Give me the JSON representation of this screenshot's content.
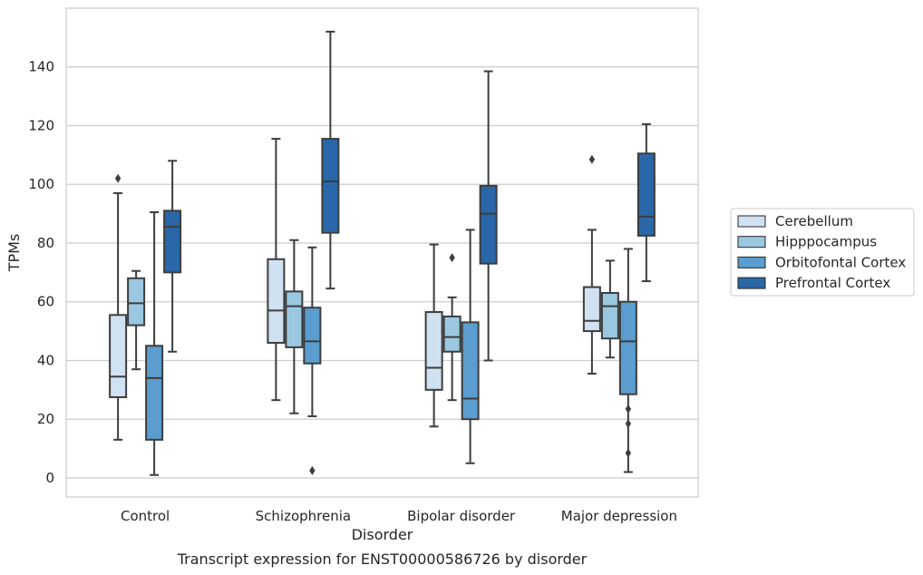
{
  "chart_data": {
    "type": "box",
    "caption": "Transcript expression for ENST00000586726 by disorder",
    "xlabel": "Disorder",
    "ylabel": "TPMs",
    "ylim": [
      -6.5,
      160
    ],
    "yticks": [
      0,
      20,
      40,
      60,
      80,
      100,
      120,
      140
    ],
    "grid": "horizontal",
    "legend_position": "right",
    "categories": [
      "Control",
      "Schizophrenia",
      "Bipolar disorder",
      "Major depression"
    ],
    "series": [
      {
        "name": "Cerebellum",
        "color": "#d0e1f2",
        "boxes": [
          {
            "whisker_low": 13,
            "q1": 27.5,
            "median": 34.5,
            "q3": 55.5,
            "whisker_high": 97,
            "outliers": [
              102
            ]
          },
          {
            "whisker_low": 26.5,
            "q1": 46,
            "median": 57,
            "q3": 74.5,
            "whisker_high": 115.5,
            "outliers": []
          },
          {
            "whisker_low": 17.5,
            "q1": 30,
            "median": 37.5,
            "q3": 56.5,
            "whisker_high": 79.5,
            "outliers": []
          },
          {
            "whisker_low": 35.5,
            "q1": 50,
            "median": 53.5,
            "q3": 65,
            "whisker_high": 84.5,
            "outliers": [
              108.5
            ]
          }
        ]
      },
      {
        "name": "Hipppocampus",
        "color": "#9ac8e0",
        "boxes": [
          {
            "whisker_low": 37,
            "q1": 52,
            "median": 59.5,
            "q3": 68,
            "whisker_high": 70.5,
            "outliers": []
          },
          {
            "whisker_low": 22,
            "q1": 44.5,
            "median": 58.5,
            "q3": 63.5,
            "whisker_high": 81,
            "outliers": []
          },
          {
            "whisker_low": 26.5,
            "q1": 43,
            "median": 48,
            "q3": 55,
            "whisker_high": 61.5,
            "outliers": [
              75
            ]
          },
          {
            "whisker_low": 41,
            "q1": 47.5,
            "median": 58.5,
            "q3": 63,
            "whisker_high": 74,
            "outliers": []
          }
        ]
      },
      {
        "name": "Orbitofontal Cortex",
        "color": "#5a9dce",
        "boxes": [
          {
            "whisker_low": 1,
            "q1": 13,
            "median": 34,
            "q3": 45,
            "whisker_high": 90.5,
            "outliers": []
          },
          {
            "whisker_low": 21,
            "q1": 39,
            "median": 46.5,
            "q3": 58,
            "whisker_high": 78.5,
            "outliers": [
              2.5
            ]
          },
          {
            "whisker_low": 5,
            "q1": 20,
            "median": 27,
            "q3": 53,
            "whisker_high": 84.5,
            "outliers": []
          },
          {
            "whisker_low": 2,
            "q1": 28.5,
            "median": 46.5,
            "q3": 60,
            "whisker_high": 78,
            "outliers": [
              8.5,
              18.5,
              23.5
            ]
          }
        ]
      },
      {
        "name": "Prefrontal Cortex",
        "color": "#2967a8",
        "boxes": [
          {
            "whisker_low": 43,
            "q1": 70,
            "median": 85.5,
            "q3": 91,
            "whisker_high": 108,
            "outliers": []
          },
          {
            "whisker_low": 64.5,
            "q1": 83.5,
            "median": 101,
            "q3": 115.5,
            "whisker_high": 152,
            "outliers": []
          },
          {
            "whisker_low": 40,
            "q1": 73,
            "median": 90,
            "q3": 99.5,
            "whisker_high": 138.5,
            "outliers": []
          },
          {
            "whisker_low": 67,
            "q1": 82.5,
            "median": 89,
            "q3": 110.5,
            "whisker_high": 120.5,
            "outliers": []
          }
        ]
      }
    ]
  }
}
